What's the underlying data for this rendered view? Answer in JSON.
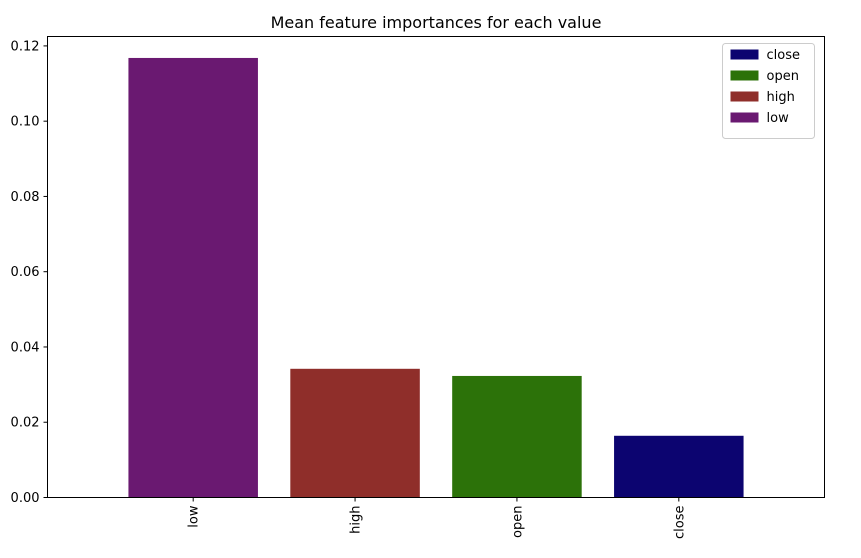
{
  "chart_data": {
    "type": "bar",
    "title": "Mean feature importances for each value",
    "xlabel": "",
    "ylabel": "",
    "categories": [
      "low",
      "high",
      "open",
      "close"
    ],
    "values": [
      0.1168,
      0.0342,
      0.0323,
      0.0164
    ],
    "bar_colors": [
      "#6a1971",
      "#8f2e2a",
      "#2c7209",
      "#0c0470"
    ],
    "ylim": [
      0,
      0.1225
    ],
    "yticks": [
      0.0,
      0.02,
      0.04,
      0.06,
      0.08,
      0.1,
      0.12
    ],
    "ytick_labels": [
      "0.00",
      "0.02",
      "0.04",
      "0.06",
      "0.08",
      "0.10",
      "0.12"
    ],
    "xtick_rotation": "vertical",
    "legend": {
      "placement": "top-right",
      "entries": [
        {
          "label": "close",
          "color": "#0c0470"
        },
        {
          "label": "open",
          "color": "#2c7209"
        },
        {
          "label": "high",
          "color": "#8f2e2a"
        },
        {
          "label": "low",
          "color": "#6a1971"
        }
      ]
    },
    "grid": false
  }
}
